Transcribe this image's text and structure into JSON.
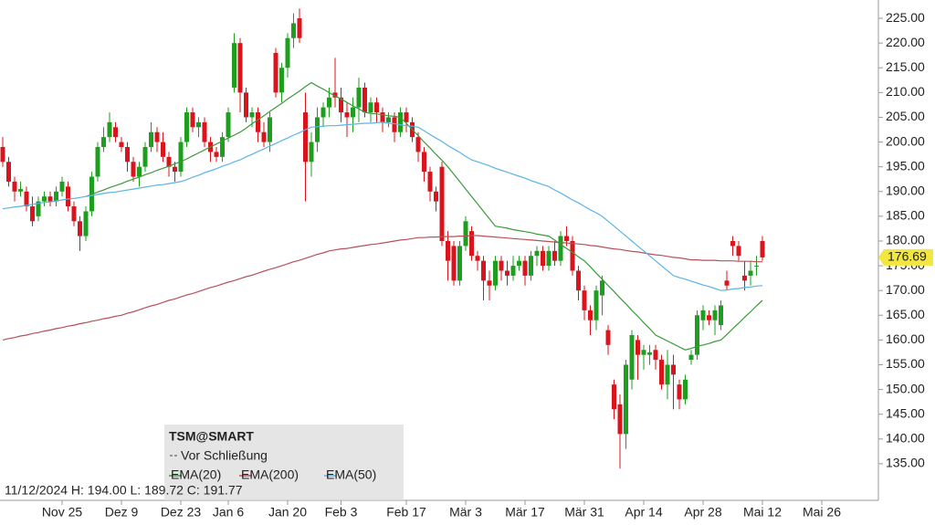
{
  "chart_data": {
    "type": "candlestick",
    "title": "TSM@SMART",
    "subtitle": "Vor Schließung",
    "status": "11/12/2024 H: 194.00 L: 189.72 C: 191.77",
    "up_color": "#1e9e1e",
    "down_color": "#d9141c",
    "categories": [
      null,
      null,
      null,
      null,
      null,
      null,
      null,
      null,
      null,
      null,
      "Nov 25",
      null,
      null,
      null,
      null,
      null,
      null,
      null,
      null,
      null,
      "Dez 9",
      null,
      null,
      null,
      null,
      null,
      null,
      null,
      null,
      null,
      "Dez 23",
      null,
      null,
      null,
      null,
      null,
      null,
      null,
      "Jan 6",
      null,
      null,
      null,
      null,
      null,
      null,
      null,
      null,
      null,
      "Jan 20",
      null,
      null,
      null,
      null,
      null,
      null,
      null,
      null,
      "Feb 3",
      null,
      null,
      null,
      null,
      null,
      null,
      null,
      null,
      null,
      null,
      "Feb 17",
      null,
      null,
      null,
      null,
      null,
      null,
      null,
      null,
      null,
      "Mär 3",
      null,
      null,
      null,
      null,
      null,
      null,
      null,
      null,
      null,
      "Mär 17",
      null,
      null,
      null,
      null,
      null,
      null,
      null,
      null,
      null,
      "Mär 31",
      null,
      null,
      null,
      null,
      null,
      null,
      null,
      null,
      null,
      "Apr 14",
      null,
      null,
      null,
      null,
      null,
      null,
      null,
      null,
      null,
      "Apr 28",
      null,
      null,
      null,
      null,
      null,
      null,
      null,
      null,
      null,
      "Mai 12",
      null,
      null,
      null,
      null,
      null,
      null,
      null,
      null,
      null,
      "Mai 26"
    ],
    "open": [
      199,
      196,
      192,
      190,
      190,
      187,
      185,
      188,
      189,
      188,
      190,
      191,
      187,
      184,
      181,
      186,
      193,
      199,
      201,
      203,
      200,
      199,
      196,
      193,
      195,
      199,
      202,
      200,
      197,
      195,
      194,
      200,
      206,
      203,
      204,
      200,
      198,
      197,
      201,
      211,
      220,
      210,
      205,
      206,
      202,
      200,
      218,
      210,
      215,
      221,
      225,
      206,
      196,
      200,
      205,
      207,
      210,
      209,
      206,
      205,
      207,
      211,
      206,
      208,
      206,
      204,
      205,
      202,
      206,
      204,
      201,
      198,
      194,
      190,
      195,
      180,
      179,
      172,
      179,
      182,
      177,
      176,
      172,
      171,
      176,
      174,
      173,
      175,
      176,
      173,
      177,
      178,
      175,
      178,
      176,
      181,
      180,
      174,
      170,
      166,
      164,
      169,
      162,
      151,
      147,
      141,
      152,
      160,
      157,
      157,
      158,
      156,
      151,
      155,
      151,
      148,
      156,
      157,
      164,
      165,
      164,
      163,
      172,
      180,
      179,
      173,
      173,
      175,
      180,
      null,
      null,
      null,
      null,
      null,
      null,
      null,
      null,
      null,
      null
    ],
    "high": [
      201,
      197,
      193,
      192,
      191,
      189,
      189,
      190,
      190,
      191,
      193,
      192,
      188,
      185,
      187,
      194,
      200,
      203,
      206,
      204,
      201,
      200,
      197,
      196,
      200,
      204,
      203,
      202,
      198,
      196,
      201,
      207,
      207,
      205,
      205,
      201,
      199,
      202,
      207,
      222,
      221,
      211,
      207,
      207,
      204,
      206,
      219,
      216,
      222,
      226,
      227,
      210,
      202,
      207,
      208,
      211,
      217,
      211,
      208,
      209,
      213,
      212,
      209,
      209,
      207,
      206,
      206,
      207,
      207,
      205,
      202,
      199,
      195,
      191,
      196,
      182,
      180,
      180,
      185,
      183,
      178,
      177,
      174,
      177,
      177,
      176,
      177,
      177,
      177,
      178,
      179,
      179,
      179,
      180,
      182,
      183,
      181,
      175,
      171,
      167,
      171,
      173,
      163,
      152,
      149,
      156,
      162,
      161,
      159,
      159,
      159,
      157,
      158,
      157,
      152,
      153,
      158,
      166,
      167,
      166,
      167,
      168,
      174,
      181,
      180,
      176,
      176,
      177,
      181,
      null,
      null,
      null,
      null,
      null,
      null,
      null,
      null,
      null,
      null
    ],
    "low": [
      195,
      191,
      188,
      189,
      186,
      183,
      184,
      187,
      187,
      187,
      189,
      186,
      183,
      178,
      180,
      185,
      192,
      198,
      200,
      200,
      198,
      194,
      192,
      191,
      194,
      198,
      198,
      196,
      193,
      192,
      193,
      199,
      202,
      201,
      199,
      196,
      196,
      196,
      200,
      210,
      206,
      204,
      203,
      200,
      199,
      198,
      209,
      208,
      213,
      219,
      220,
      188,
      193,
      198,
      203,
      205,
      207,
      204,
      201,
      202,
      204,
      205,
      204,
      204,
      202,
      203,
      200,
      201,
      202,
      200,
      196,
      192,
      188,
      186,
      179,
      172,
      171,
      171,
      178,
      176,
      174,
      168,
      168,
      170,
      172,
      171,
      172,
      174,
      171,
      172,
      175,
      174,
      174,
      175,
      175,
      179,
      173,
      168,
      164,
      161,
      162,
      165,
      157,
      144,
      134,
      138,
      150,
      152,
      154,
      155,
      154,
      150,
      148,
      146,
      146,
      147,
      155,
      156,
      162,
      163,
      161,
      162,
      170,
      177,
      176,
      170,
      171,
      173,
      176,
      null,
      null,
      null,
      null,
      null,
      null,
      null,
      null,
      null,
      null
    ],
    "close": [
      196,
      192,
      190,
      190.5,
      187,
      184,
      188,
      189,
      188,
      190,
      192,
      187,
      184,
      181,
      186,
      193,
      199,
      201,
      204,
      201,
      199,
      196,
      193,
      195,
      199,
      202,
      200,
      197,
      195,
      194,
      200,
      206,
      203,
      204,
      200,
      198,
      197,
      201,
      206,
      220,
      210,
      205,
      206,
      202,
      200,
      205,
      210,
      215,
      221,
      224,
      221,
      196,
      200,
      205,
      207,
      209,
      209,
      206,
      205,
      207,
      211,
      206,
      208,
      206,
      204,
      205,
      202,
      206,
      204,
      201,
      198,
      194,
      190,
      188,
      180,
      176,
      172,
      179,
      184,
      177,
      176,
      172,
      171,
      176,
      174,
      173,
      175,
      176,
      173,
      177,
      178,
      175,
      178,
      176,
      181,
      180,
      174,
      170,
      166,
      164,
      170,
      172,
      159,
      146,
      141,
      155,
      161,
      157,
      158,
      157.5,
      156,
      151,
      155,
      153,
      148,
      152,
      157,
      165,
      166,
      164,
      166,
      167,
      171,
      179,
      177,
      172,
      174,
      175,
      176.69,
      null,
      null,
      null,
      null,
      null,
      null,
      null,
      null,
      null,
      null
    ],
    "series": [
      {
        "name": "EMA(20)",
        "color": "#3a9a3a",
        "values": [
          null,
          null,
          null,
          null,
          null,
          null,
          null,
          null,
          null,
          null,
          null,
          null,
          null,
          null,
          189,
          189.4,
          189.9,
          190.3,
          190.8,
          191.2,
          191.6,
          192.1,
          192.5,
          192.9,
          193.4,
          193.8,
          194.3,
          194.7,
          195.1,
          195.6,
          196,
          196.6,
          197.2,
          197.8,
          198.4,
          199,
          199.6,
          200.2,
          200.8,
          201.4,
          202,
          202.8,
          203.7,
          204.5,
          205.3,
          206.2,
          207,
          207.8,
          208.7,
          209.5,
          210.3,
          211.2,
          212,
          211.3,
          210.7,
          210,
          209.3,
          208.7,
          208,
          207.3,
          206.7,
          206,
          205.8,
          205.7,
          205.5,
          205.3,
          205.2,
          205,
          203.8,
          202.5,
          201.3,
          200,
          198.8,
          197.5,
          196.3,
          195,
          193.5,
          192,
          190.5,
          189,
          187.5,
          186,
          184.5,
          183,
          182.8,
          182.6,
          182.3,
          182.1,
          181.9,
          181.7,
          181.4,
          181.2,
          181,
          180.2,
          179.3,
          178.5,
          177.7,
          176.8,
          176,
          174.8,
          173.5,
          172.3,
          171,
          169.8,
          168.5,
          167.3,
          166,
          164.8,
          163.5,
          162.3,
          161,
          160.4,
          159.8,
          159.2,
          158.6,
          158,
          158.3,
          158.7,
          159,
          159.3,
          159.7,
          160,
          161.1,
          162.3,
          163.4,
          164.6,
          165.7,
          166.9,
          168,
          null,
          null,
          null,
          null,
          null,
          null,
          null,
          null,
          null,
          null
        ]
      },
      {
        "name": "EMA(200)",
        "color": "#b8505a",
        "values": [
          160,
          160.3,
          160.5,
          160.8,
          161,
          161.3,
          161.5,
          161.8,
          162,
          162.3,
          162.5,
          162.8,
          163,
          163.3,
          163.5,
          163.8,
          164,
          164.3,
          164.5,
          164.8,
          165,
          165.4,
          165.7,
          166.1,
          166.5,
          166.9,
          167.2,
          167.6,
          168,
          168.3,
          168.7,
          169.1,
          169.4,
          169.8,
          170.2,
          170.6,
          170.9,
          171.3,
          171.7,
          172,
          172.4,
          172.8,
          173.1,
          173.5,
          173.9,
          174.3,
          174.6,
          175,
          175.4,
          175.8,
          176.1,
          176.5,
          176.9,
          177.3,
          177.6,
          178,
          178.2,
          178.4,
          178.5,
          178.7,
          178.9,
          179.1,
          179.3,
          179.4,
          179.6,
          179.8,
          180,
          180.2,
          180.3,
          180.5,
          180.7,
          180.7,
          180.8,
          180.8,
          180.9,
          180.9,
          180.9,
          181,
          181,
          181.1,
          181.1,
          181,
          180.9,
          180.8,
          180.7,
          180.6,
          180.5,
          180.4,
          180.3,
          180.2,
          180.1,
          180,
          179.9,
          179.8,
          179.7,
          179.6,
          179.5,
          179.4,
          179.3,
          179.1,
          179,
          178.8,
          178.6,
          178.4,
          178.3,
          178.1,
          177.9,
          177.8,
          177.6,
          177.4,
          177.2,
          177.1,
          176.9,
          176.7,
          176.6,
          176.4,
          176.2,
          176.2,
          176.1,
          176.1,
          176.1,
          176,
          176,
          176,
          175.9,
          175.9,
          175.9,
          175.8,
          175.8,
          null,
          null,
          null,
          null,
          null,
          null,
          null,
          null,
          null,
          null
        ]
      },
      {
        "name": "EMA(50)",
        "color": "#5ab4e6",
        "values": [
          186.5,
          186.7,
          186.9,
          187,
          187.2,
          187.4,
          187.6,
          187.8,
          187.9,
          188.1,
          188.3,
          188.5,
          188.6,
          188.8,
          189,
          189.2,
          189.4,
          189.6,
          189.8,
          189.9,
          190.1,
          190.3,
          190.5,
          190.7,
          190.9,
          191.1,
          191.3,
          191.4,
          191.6,
          191.8,
          192,
          192.4,
          192.9,
          193.3,
          193.8,
          194.2,
          194.6,
          195.1,
          195.5,
          196,
          196.4,
          197,
          197.5,
          198.1,
          198.6,
          199.2,
          199.7,
          200.3,
          200.8,
          201.4,
          201.9,
          202.5,
          203,
          203.1,
          203.2,
          203.3,
          203.3,
          203.4,
          203.5,
          203.6,
          203.7,
          203.8,
          203.8,
          203.9,
          204,
          203.8,
          203.7,
          203.5,
          203.3,
          203.2,
          203,
          202.3,
          201.5,
          200.8,
          200.1,
          199.3,
          198.6,
          197.9,
          197.1,
          196.4,
          196,
          195.6,
          195.2,
          194.7,
          194.3,
          193.9,
          193.5,
          193.1,
          192.7,
          192.2,
          191.8,
          191.4,
          191,
          190.3,
          189.7,
          189,
          188.3,
          187.7,
          187,
          186.3,
          185.7,
          185,
          184,
          183,
          182,
          181,
          180,
          179,
          178,
          177,
          176,
          175,
          174,
          173,
          172.6,
          172.3,
          171.9,
          171.5,
          171.1,
          170.8,
          170.4,
          170,
          170.1,
          170.3,
          170.4,
          170.6,
          170.7,
          170.9,
          171,
          null,
          null,
          null,
          null,
          null,
          null,
          null,
          null,
          null,
          null
        ]
      }
    ],
    "ylim": [
      127.6,
      228.7
    ],
    "yticks": [
      {
        "value": 135,
        "label": "135.00"
      },
      {
        "value": 140,
        "label": "140.00"
      },
      {
        "value": 145,
        "label": "145.00"
      },
      {
        "value": 150,
        "label": "150.00"
      },
      {
        "value": 155,
        "label": "155.00"
      },
      {
        "value": 160,
        "label": "160.00"
      },
      {
        "value": 165,
        "label": "165.00"
      },
      {
        "value": 170,
        "label": "170.00"
      },
      {
        "value": 175,
        "label": "175.00"
      },
      {
        "value": 180,
        "label": "180.00"
      },
      {
        "value": 185,
        "label": "185.00"
      },
      {
        "value": 190,
        "label": "190.00"
      },
      {
        "value": 195,
        "label": "195.00"
      },
      {
        "value": 200,
        "label": "200.00"
      },
      {
        "value": 205,
        "label": "205.00"
      },
      {
        "value": 210,
        "label": "210.00"
      },
      {
        "value": 215,
        "label": "215.00"
      },
      {
        "value": 220,
        "label": "220.00"
      },
      {
        "value": 225,
        "label": "225.00"
      }
    ],
    "last_color": "#f2e640"
  }
}
